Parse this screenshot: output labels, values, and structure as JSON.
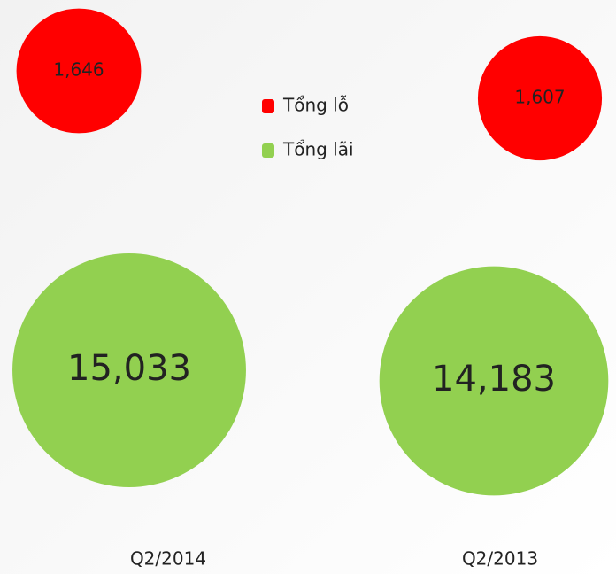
{
  "chart_data": {
    "type": "bubble",
    "categories": [
      "Q2/2014",
      "Q2/2013"
    ],
    "series": [
      {
        "name": "Tổng lỗ",
        "color": "#ff0000",
        "values": [
          1646,
          1607
        ],
        "value_labels": [
          "1,646",
          "1,607"
        ]
      },
      {
        "name": "Tổng lãi",
        "color": "#92d050",
        "values": [
          15033,
          14183
        ],
        "value_labels": [
          "15,033",
          "14,183"
        ]
      }
    ],
    "legend": "top-center"
  }
}
